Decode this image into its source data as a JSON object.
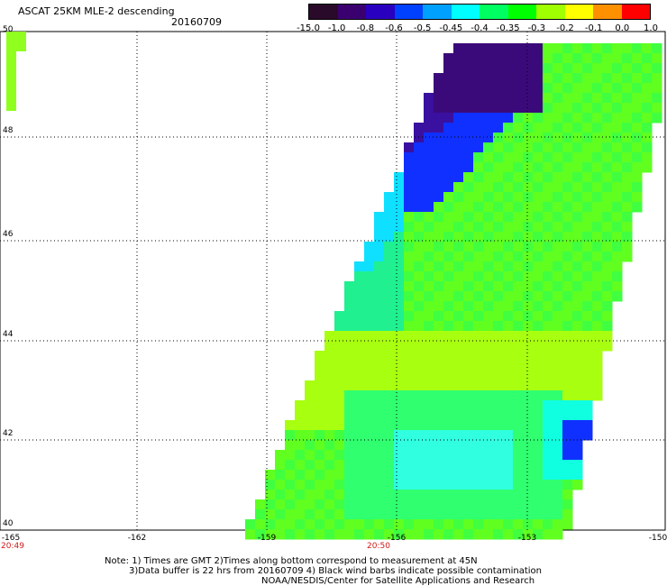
{
  "header": {
    "title": "ASCAT 25KM MLE-2 descending",
    "date": "20160709"
  },
  "colorbar": {
    "labels": [
      "-15.0",
      "-1.0",
      "-0.8",
      "-0.6",
      "-0.5",
      "-0.45",
      "-0.4",
      "-0.35",
      "-0.3",
      "-0.2",
      "-0.1",
      "0.0",
      "1.0"
    ],
    "colors": [
      "#2a0a2a",
      "#3b0070",
      "#2a00c0",
      "#0040ff",
      "#00a0ff",
      "#00ffff",
      "#00ff60",
      "#00ff00",
      "#a0ff00",
      "#ffff00",
      "#ff9000",
      "#ff0000"
    ]
  },
  "axes": {
    "lat_labels": [
      "50",
      "48",
      "46",
      "44",
      "42",
      "40"
    ],
    "lon_labels": [
      "-165",
      "-162",
      "-159",
      "-156",
      "-153",
      "-150"
    ],
    "time_labels": [
      "20:49",
      "20:50"
    ]
  },
  "footer": {
    "note1": "Note: 1) Times are GMT 2)Times along bottom correspond to measurement at 45N",
    "note2": "3)Data buffer is 22 hrs from 20160709 4) Black wind barbs indicate possible contamination",
    "credit": "NOAA/NESDIS/Center for Satellite Applications and Research"
  }
}
